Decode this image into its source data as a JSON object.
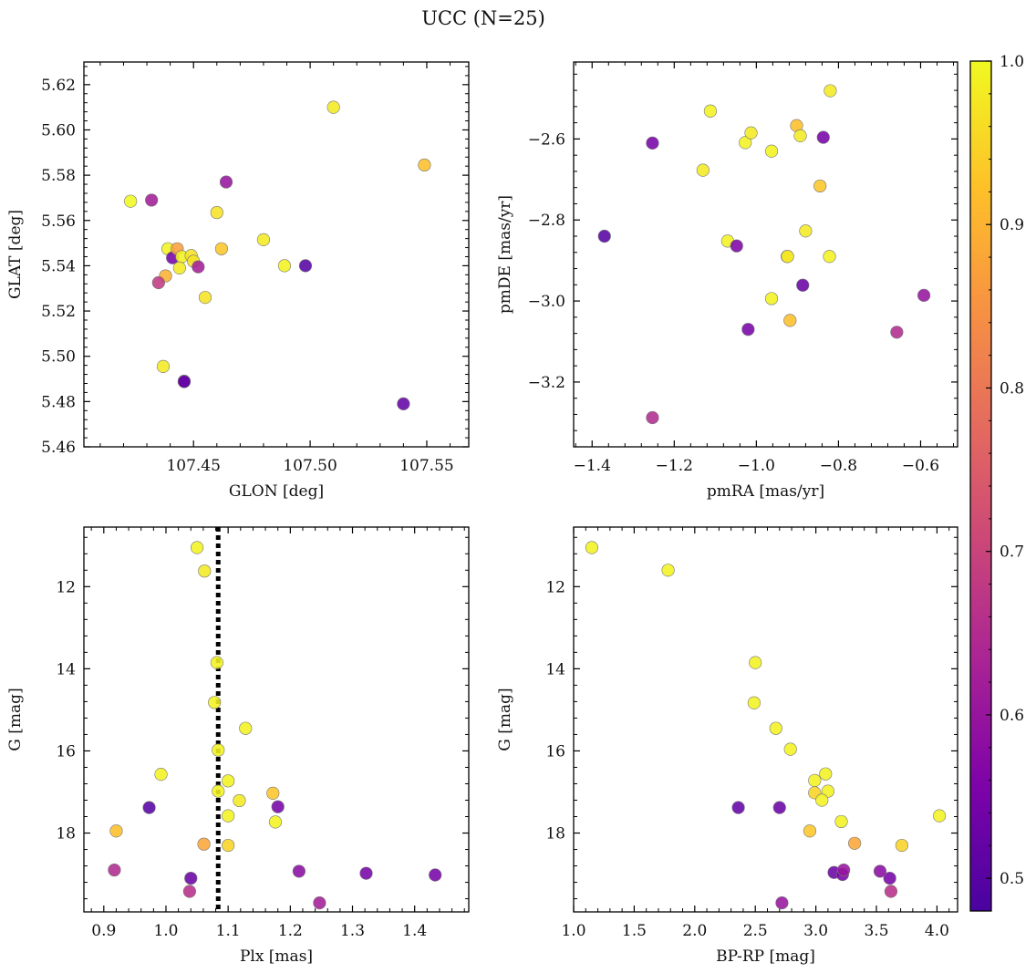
{
  "figure": {
    "title": "UCC (N=25)"
  },
  "colorbar": {
    "range": [
      0.48,
      1.0
    ],
    "ticks": [
      0.5,
      0.6,
      0.7,
      0.8,
      0.9,
      1.0
    ],
    "tick_labels": [
      "0.5",
      "0.6",
      "0.7",
      "0.8",
      "0.9",
      "1.0"
    ],
    "colormap": "plasma"
  },
  "chart_data": [
    {
      "type": "scatter",
      "xlabel": "GLON [deg]",
      "ylabel": "GLAT [deg]",
      "xlim": [
        107.403,
        107.568
      ],
      "ylim": [
        5.46,
        5.63
      ],
      "xticks": [
        107.45,
        107.5,
        107.55
      ],
      "xtick_labels": [
        "107.45",
        "107.50",
        "107.55"
      ],
      "yticks": [
        5.46,
        5.48,
        5.5,
        5.52,
        5.54,
        5.56,
        5.58,
        5.6,
        5.62
      ],
      "ytick_labels": [
        "5.46",
        "5.48",
        "5.50",
        "5.52",
        "5.54",
        "5.56",
        "5.58",
        "5.60",
        "5.62"
      ],
      "x": [
        107.423,
        107.432,
        107.438,
        107.439,
        107.441,
        107.443,
        107.445,
        107.444,
        107.449,
        107.45,
        107.446,
        107.452,
        107.455,
        107.46,
        107.462,
        107.464,
        107.48,
        107.489,
        107.498,
        107.51,
        107.549,
        107.54,
        107.437,
        107.446,
        107.435
      ],
      "y": [
        5.5685,
        5.569,
        5.5355,
        5.5475,
        5.5435,
        5.5475,
        5.544,
        5.539,
        5.5445,
        5.542,
        5.489,
        5.5395,
        5.526,
        5.5635,
        5.5475,
        5.577,
        5.5515,
        5.54,
        5.54,
        5.61,
        5.5845,
        5.479,
        5.4955,
        5.4888,
        5.5325
      ],
      "color": [
        1.0,
        0.62,
        0.9,
        0.99,
        0.55,
        0.87,
        0.99,
        0.98,
        0.97,
        0.97,
        0.52,
        0.62,
        0.97,
        0.97,
        0.93,
        0.6,
        0.98,
        0.99,
        0.5,
        0.98,
        0.92,
        0.52,
        0.98,
        0.52,
        0.68
      ],
      "grid": false
    },
    {
      "type": "scatter",
      "xlabel": "pmRA [mas/yr]",
      "ylabel": "pmDE [mas/yr]",
      "xlim": [
        -1.445,
        -0.51
      ],
      "ylim": [
        -3.36,
        -2.41
      ],
      "xticks": [
        -1.4,
        -1.2,
        -1.0,
        -0.8,
        -0.6
      ],
      "xtick_labels": [
        "−1.4",
        "−1.2",
        "−1.0",
        "−0.8",
        "−0.6"
      ],
      "yticks": [
        -3.2,
        -3.0,
        -2.8,
        -2.6
      ],
      "ytick_labels": [
        "−3.2",
        "−3.0",
        "−2.8",
        "−2.6"
      ],
      "x": [
        -1.112,
        -1.253,
        -1.13,
        -1.027,
        -1.013,
        -0.963,
        -0.902,
        -0.893,
        -0.837,
        -0.82,
        -0.845,
        -1.37,
        -1.07,
        -1.048,
        -0.925,
        -0.88,
        -0.822,
        -0.887,
        -0.963,
        -1.02,
        -0.918,
        -0.658,
        -0.592,
        -1.253,
        -0.924
      ],
      "y": [
        -2.531,
        -2.61,
        -2.677,
        -2.609,
        -2.585,
        -2.63,
        -2.567,
        -2.592,
        -2.596,
        -2.481,
        -2.716,
        -2.84,
        -2.852,
        -2.864,
        -2.89,
        -2.827,
        -2.89,
        -2.961,
        -2.994,
        -3.07,
        -3.048,
        -3.077,
        -2.986,
        -3.288,
        -2.89
      ],
      "color": [
        0.99,
        0.55,
        0.98,
        0.99,
        0.98,
        0.99,
        0.92,
        0.98,
        0.55,
        0.98,
        0.93,
        0.5,
        0.99,
        0.56,
        0.93,
        0.98,
        0.99,
        0.53,
        0.99,
        0.55,
        0.92,
        0.65,
        0.6,
        0.65,
        0.98
      ],
      "grid": false
    },
    {
      "type": "scatter",
      "xlabel": "Plx [mas]",
      "ylabel": "G [mag]",
      "xlim": [
        0.868,
        1.487
      ],
      "ylim": [
        19.92,
        10.55
      ],
      "xticks": [
        0.9,
        1.0,
        1.1,
        1.2,
        1.3,
        1.4
      ],
      "xtick_labels": [
        "0.9",
        "1.0",
        "1.1",
        "1.2",
        "1.3",
        "1.4"
      ],
      "yticks": [
        12,
        14,
        16,
        18
      ],
      "ytick_labels": [
        "12",
        "14",
        "16",
        "18"
      ],
      "vline_x": 1.084,
      "x": [
        1.05,
        1.062,
        1.082,
        1.078,
        1.128,
        1.084,
        0.992,
        1.1,
        1.084,
        1.118,
        1.172,
        0.973,
        1.18,
        1.1,
        1.176,
        0.92,
        1.061,
        1.1,
        0.917,
        1.04,
        1.038,
        1.214,
        1.322,
        1.433,
        1.247
      ],
      "y": [
        11.05,
        11.62,
        13.85,
        14.82,
        15.45,
        15.98,
        16.57,
        16.73,
        16.98,
        17.21,
        17.03,
        17.38,
        17.36,
        17.58,
        17.73,
        17.95,
        18.27,
        18.3,
        18.9,
        19.1,
        19.42,
        18.93,
        18.98,
        19.02,
        19.7
      ],
      "color": [
        0.99,
        0.98,
        0.99,
        0.99,
        0.99,
        0.99,
        0.99,
        0.99,
        0.99,
        0.98,
        0.93,
        0.5,
        0.55,
        0.99,
        0.99,
        0.92,
        0.88,
        0.95,
        0.65,
        0.53,
        0.66,
        0.58,
        0.55,
        0.55,
        0.62
      ],
      "grid": false
    },
    {
      "type": "scatter",
      "xlabel": "BP-RP [mag]",
      "ylabel": "G [mag]",
      "xlim": [
        1.0,
        4.17
      ],
      "ylim": [
        19.92,
        10.55
      ],
      "xticks": [
        1.0,
        1.5,
        2.0,
        2.5,
        3.0,
        3.5,
        4.0
      ],
      "xtick_labels": [
        "1.0",
        "1.5",
        "2.0",
        "2.5",
        "3.0",
        "3.5",
        "4.0"
      ],
      "yticks": [
        12,
        14,
        16,
        18
      ],
      "ytick_labels": [
        "12",
        "14",
        "16",
        "18"
      ],
      "x": [
        1.15,
        1.78,
        2.5,
        2.49,
        2.67,
        2.79,
        3.08,
        2.99,
        3.1,
        2.99,
        3.05,
        2.36,
        2.7,
        4.02,
        3.21,
        2.95,
        3.32,
        3.71,
        3.15,
        3.22,
        3.61,
        3.62,
        3.53,
        3.23,
        2.72
      ],
      "y": [
        11.05,
        11.6,
        13.85,
        14.83,
        15.45,
        15.96,
        16.56,
        16.72,
        16.98,
        17.02,
        17.2,
        17.38,
        17.38,
        17.58,
        17.72,
        17.95,
        18.25,
        18.3,
        18.96,
        19.01,
        19.1,
        19.42,
        18.93,
        18.9,
        19.7
      ],
      "color": [
        0.99,
        0.99,
        0.99,
        0.99,
        0.99,
        0.99,
        0.99,
        0.99,
        0.99,
        0.95,
        0.99,
        0.52,
        0.53,
        0.99,
        0.99,
        0.93,
        0.88,
        0.95,
        0.53,
        0.55,
        0.55,
        0.66,
        0.58,
        0.6,
        0.6
      ],
      "grid": false
    }
  ]
}
